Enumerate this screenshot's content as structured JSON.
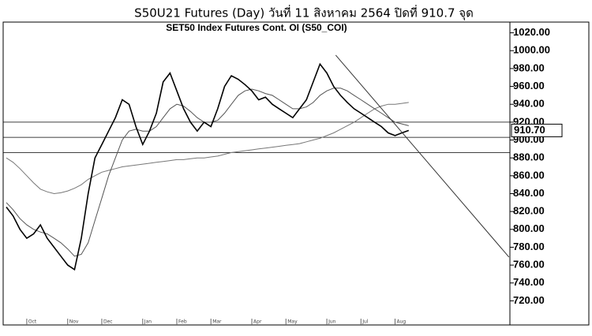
{
  "chart_data": {
    "type": "line",
    "title": "S50U21 Futures (Day) วันที่   11 สิงหาคม   2564 ปิดที่   910.7 จุด",
    "subtitle": "SET50 Index Futures Cont. OI (S50_COI)",
    "categories": [
      null,
      null,
      null,
      "Oct",
      null,
      null,
      null,
      null,
      null,
      "Nov",
      null,
      null,
      null,
      null,
      "Dec",
      null,
      null,
      null,
      null,
      null,
      "Jan",
      null,
      null,
      null,
      null,
      "Feb",
      null,
      null,
      null,
      null,
      "Mar",
      null,
      null,
      null,
      null,
      null,
      "Apr",
      null,
      null,
      null,
      null,
      "May",
      null,
      null,
      null,
      null,
      null,
      "Jun",
      null,
      null,
      null,
      null,
      "Jul",
      null,
      null,
      null,
      null,
      "Aug",
      null,
      null
    ],
    "series": [
      {
        "color": "#000000",
        "values": [
          825,
          815,
          800,
          790,
          795,
          805,
          790,
          780,
          770,
          760,
          755,
          790,
          840,
          880,
          895,
          910,
          925,
          945,
          940,
          915,
          895,
          910,
          930,
          965,
          975,
          955,
          935,
          920,
          910,
          920,
          915,
          935,
          960,
          972,
          968,
          962,
          955,
          945,
          948,
          940,
          935,
          930,
          925,
          935,
          945,
          965,
          985,
          975,
          960,
          950,
          942,
          935,
          930,
          925,
          920,
          915,
          908,
          905,
          908,
          910.7
        ]
      },
      {
        "color": "#555555",
        "values": [
          830,
          822,
          812,
          805,
          800,
          797,
          795,
          790,
          785,
          778,
          770,
          772,
          785,
          810,
          835,
          860,
          880,
          900,
          910,
          912,
          910,
          910,
          915,
          925,
          935,
          940,
          938,
          932,
          925,
          920,
          920,
          922,
          930,
          940,
          950,
          955,
          957,
          955,
          952,
          950,
          945,
          940,
          935,
          935,
          937,
          942,
          950,
          955,
          958,
          958,
          955,
          950,
          945,
          940,
          935,
          930,
          925,
          920,
          918,
          916
        ]
      },
      {
        "color": "#777777",
        "values": [
          880,
          875,
          868,
          860,
          852,
          845,
          842,
          840,
          841,
          843,
          846,
          850,
          856,
          860,
          864,
          866,
          868,
          870,
          871,
          872,
          873,
          874,
          875,
          876,
          877,
          878,
          878,
          879,
          880,
          880,
          881,
          882,
          884,
          886,
          887,
          888,
          889,
          890,
          891,
          892,
          893,
          894,
          895,
          896,
          898,
          900,
          902,
          905,
          908,
          912,
          916,
          920,
          925,
          930,
          935,
          938,
          940,
          940,
          941,
          942
        ]
      }
    ],
    "hlines": [
      920,
      903,
      886
    ],
    "trendline": {
      "x": [
        48.3,
        73.7
      ],
      "values": [
        995,
        769
      ]
    },
    "last": {
      "value": 910.7,
      "label": "910.70"
    },
    "ylim": [
      693,
      1032
    ],
    "yticks": [
      {
        "value": 720,
        "label": "720.00"
      },
      {
        "value": 740,
        "label": "740.00"
      },
      {
        "value": 760,
        "label": "760.00"
      },
      {
        "value": 780,
        "label": "780.00"
      },
      {
        "value": 800,
        "label": "800.00"
      },
      {
        "value": 820,
        "label": "820.00"
      },
      {
        "value": 840,
        "label": "840.00"
      },
      {
        "value": 860,
        "label": "860.00"
      },
      {
        "value": 880,
        "label": "880.00"
      },
      {
        "value": 900,
        "label": "900.00"
      },
      {
        "value": 920,
        "label": "920.00"
      },
      {
        "value": 940,
        "label": "940.00"
      },
      {
        "value": 960,
        "label": "960.00"
      },
      {
        "value": 980,
        "label": "980.00"
      },
      {
        "value": 1000,
        "label": "1000.00"
      },
      {
        "value": 1020,
        "label": "1020.00"
      }
    ]
  }
}
